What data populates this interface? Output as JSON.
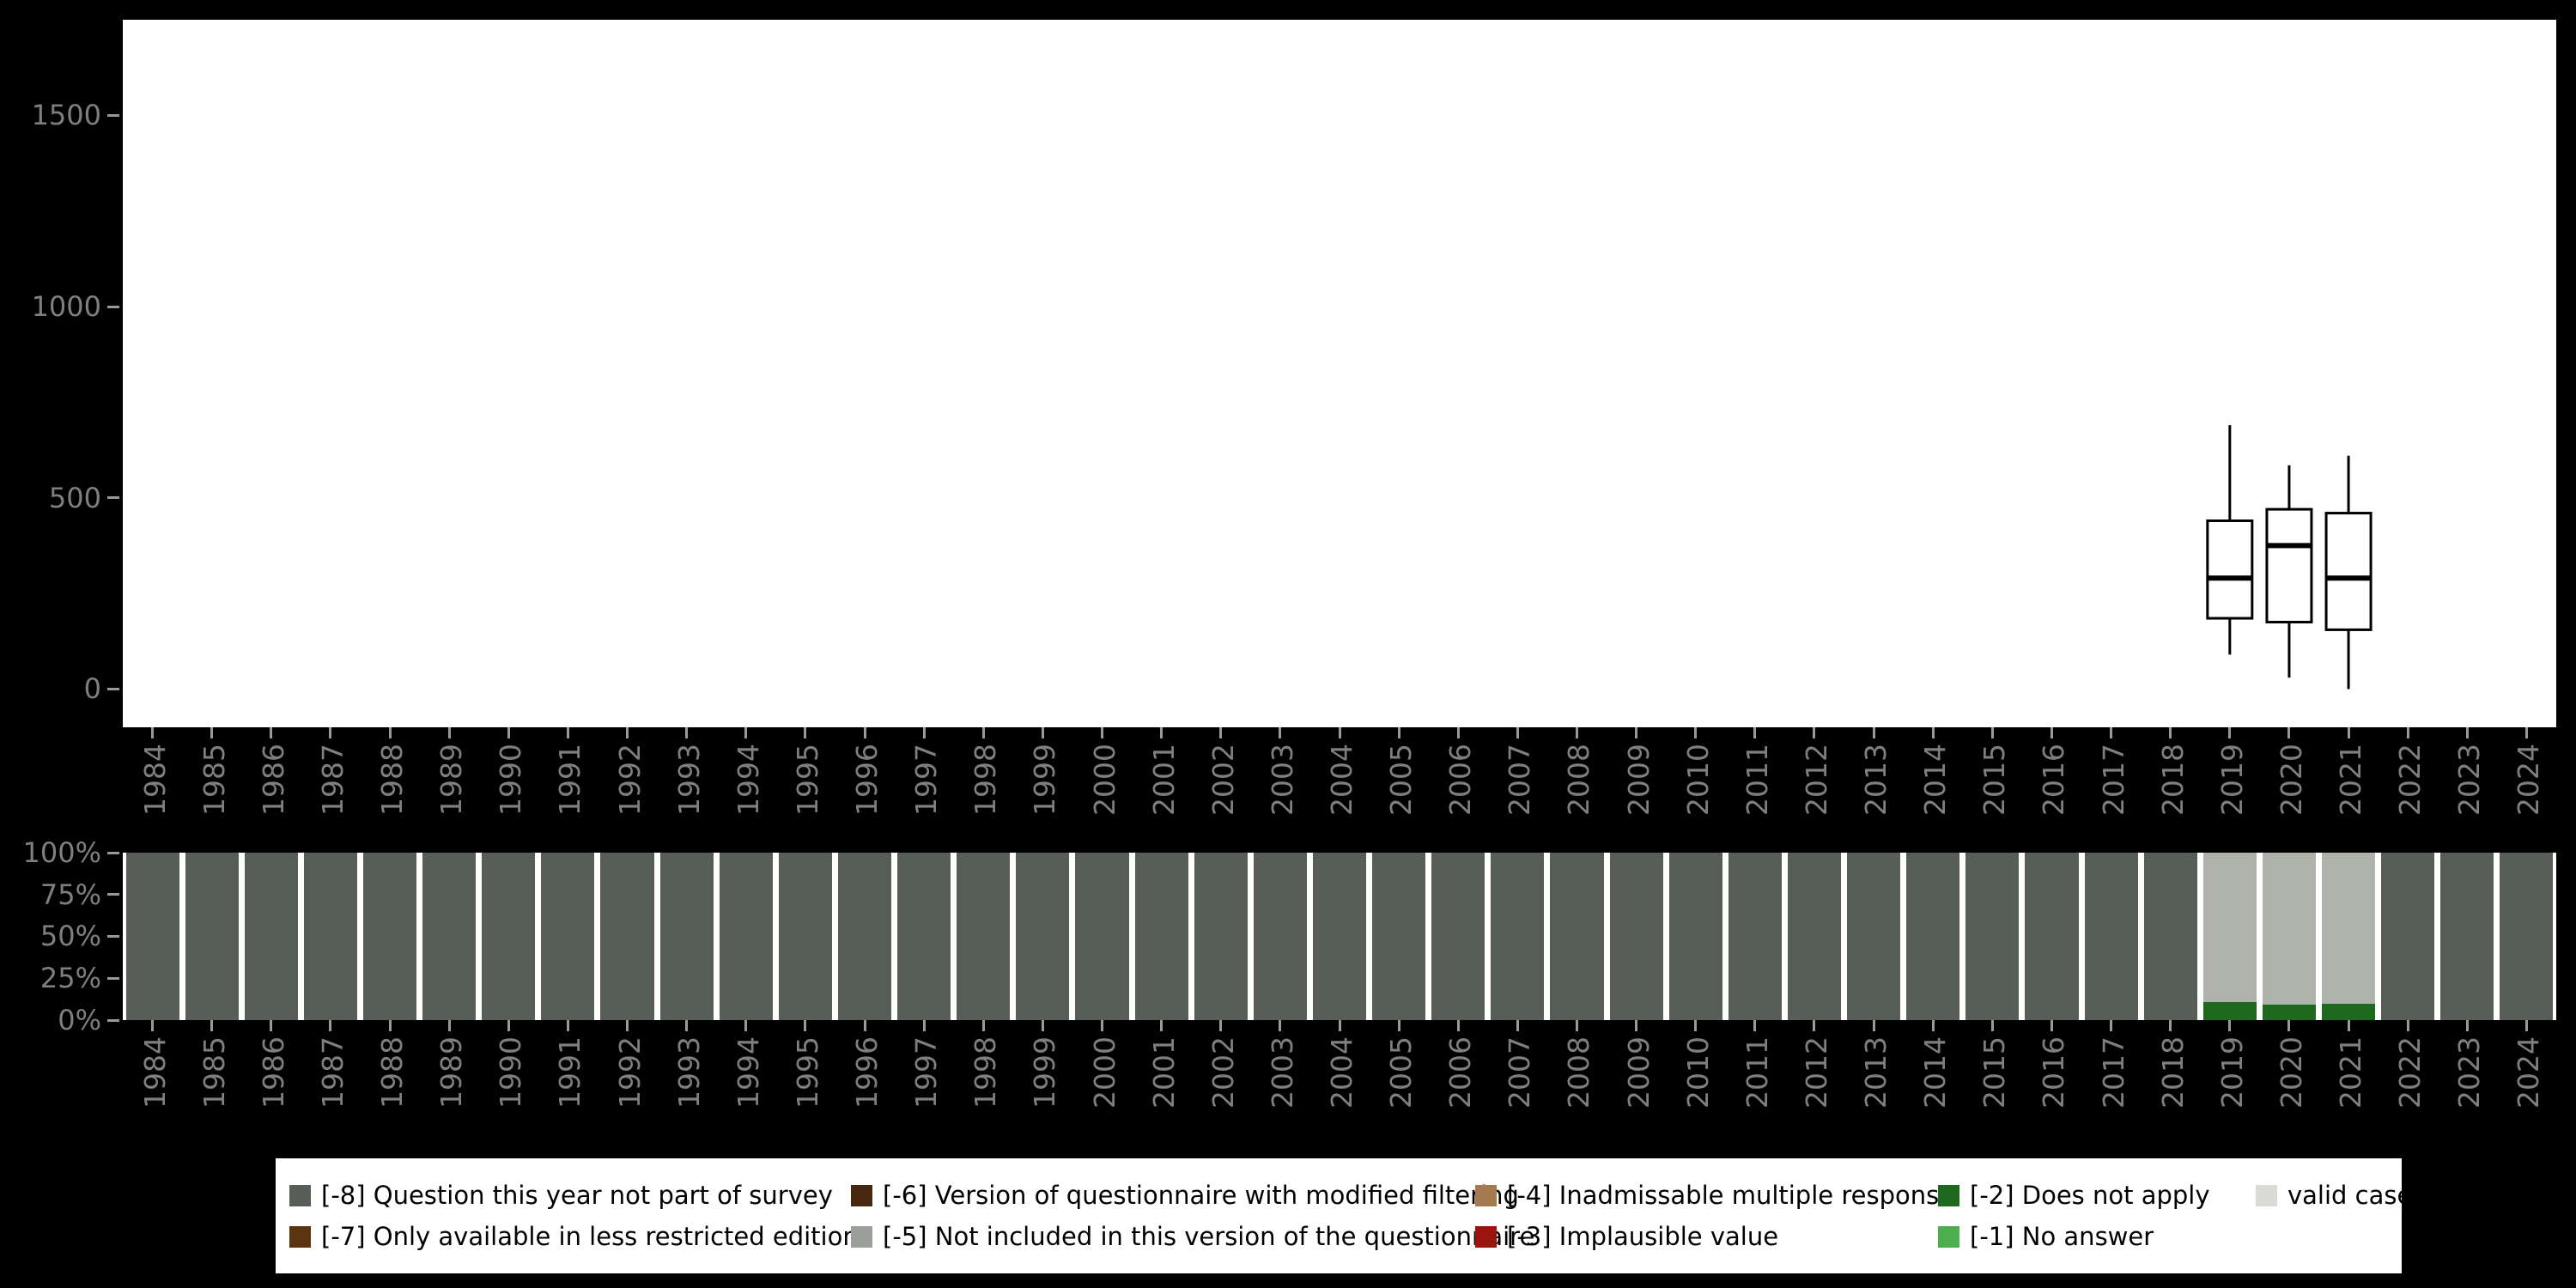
{
  "colors": {
    "background": "#000000",
    "panel_bg": "#ffffff",
    "axis_text": "#7f7f7f",
    "tick": "#999999",
    "box_stroke": "#000000",
    "codes": {
      "[-8]": "#565e57",
      "[-7]": "#5a330f",
      "[-6]": "#45280f",
      "[-5]": "#9ba09a",
      "[-4]": "#a57a4f",
      "[-3]": "#9b150e",
      "[-2]": "#1d691d",
      "[-1]": "#4cae4c",
      "valid": "#aeb2ab"
    }
  },
  "chart_data": [
    {
      "type": "boxplot",
      "title": "",
      "xlabel": "",
      "ylabel": "",
      "x": [
        "1984",
        "1985",
        "1986",
        "1987",
        "1988",
        "1989",
        "1990",
        "1991",
        "1992",
        "1993",
        "1994",
        "1995",
        "1996",
        "1997",
        "1998",
        "1999",
        "2000",
        "2001",
        "2002",
        "2003",
        "2004",
        "2005",
        "2006",
        "2007",
        "2008",
        "2009",
        "2010",
        "2011",
        "2012",
        "2013",
        "2014",
        "2015",
        "2016",
        "2017",
        "2018",
        "2019",
        "2020",
        "2021",
        "2022",
        "2023",
        "2024"
      ],
      "yticks": [
        0,
        500,
        1000,
        1500
      ],
      "ytick_labels": [
        "0",
        "500",
        "1000",
        "1500"
      ],
      "ylim": [
        -100,
        1750
      ],
      "grid": false,
      "series": [
        {
          "year": "2019",
          "min": 90,
          "q1": 185,
          "median": 290,
          "q3": 440,
          "max": 690
        },
        {
          "year": "2020",
          "min": 30,
          "q1": 175,
          "median": 375,
          "q3": 470,
          "max": 585
        },
        {
          "year": "2021",
          "min": 0,
          "q1": 155,
          "median": 290,
          "q3": 460,
          "max": 610
        }
      ]
    },
    {
      "type": "bar",
      "subtype": "stacked-percent",
      "title": "",
      "xlabel": "",
      "ylabel": "",
      "x": [
        "1984",
        "1985",
        "1986",
        "1987",
        "1988",
        "1989",
        "1990",
        "1991",
        "1992",
        "1993",
        "1994",
        "1995",
        "1996",
        "1997",
        "1998",
        "1999",
        "2000",
        "2001",
        "2002",
        "2003",
        "2004",
        "2005",
        "2006",
        "2007",
        "2008",
        "2009",
        "2010",
        "2011",
        "2012",
        "2013",
        "2014",
        "2015",
        "2016",
        "2017",
        "2018",
        "2019",
        "2020",
        "2021",
        "2022",
        "2023",
        "2024"
      ],
      "yticks": [
        0,
        25,
        50,
        75,
        100
      ],
      "ytick_labels": [
        "0%",
        "25%",
        "50%",
        "75%",
        "100%"
      ],
      "ylim": [
        0,
        100
      ],
      "grid": false,
      "default_segments": [
        {
          "code": "[-8]",
          "pct": 100
        }
      ],
      "overrides": {
        "2019": [
          {
            "code": "[-2]",
            "pct": 11
          },
          {
            "code": "valid",
            "pct": 89
          }
        ],
        "2020": [
          {
            "code": "[-2]",
            "pct": 9
          },
          {
            "code": "valid",
            "pct": 91
          }
        ],
        "2021": [
          {
            "code": "[-2]",
            "pct": 10
          },
          {
            "code": "valid",
            "pct": 90
          }
        ]
      }
    }
  ],
  "legend": {
    "position": "bottom",
    "items": [
      {
        "code": "[-8]",
        "label": "[-8] Question this year not part of survey",
        "color": "#565e57"
      },
      {
        "code": "[-6]",
        "label": "[-6] Version of questionnaire with modified filtering",
        "color": "#45280f"
      },
      {
        "code": "[-4]",
        "label": "[-4] Inadmissable multiple response",
        "color": "#a57a4f"
      },
      {
        "code": "[-2]",
        "label": "[-2] Does not apply",
        "color": "#1d691d"
      },
      {
        "code": "valid",
        "label": "valid cases",
        "color": "#d9dbd4"
      },
      {
        "code": "[-7]",
        "label": "[-7] Only available in less restricted edition",
        "color": "#5a330f"
      },
      {
        "code": "[-5]",
        "label": "[-5] Not included in this version of the questionnaire",
        "color": "#9ba09a"
      },
      {
        "code": "[-3]",
        "label": "[-3] Implausible value",
        "color": "#9b150e"
      },
      {
        "code": "[-1]",
        "label": "[-1] No answer",
        "color": "#4cae4c"
      }
    ]
  }
}
